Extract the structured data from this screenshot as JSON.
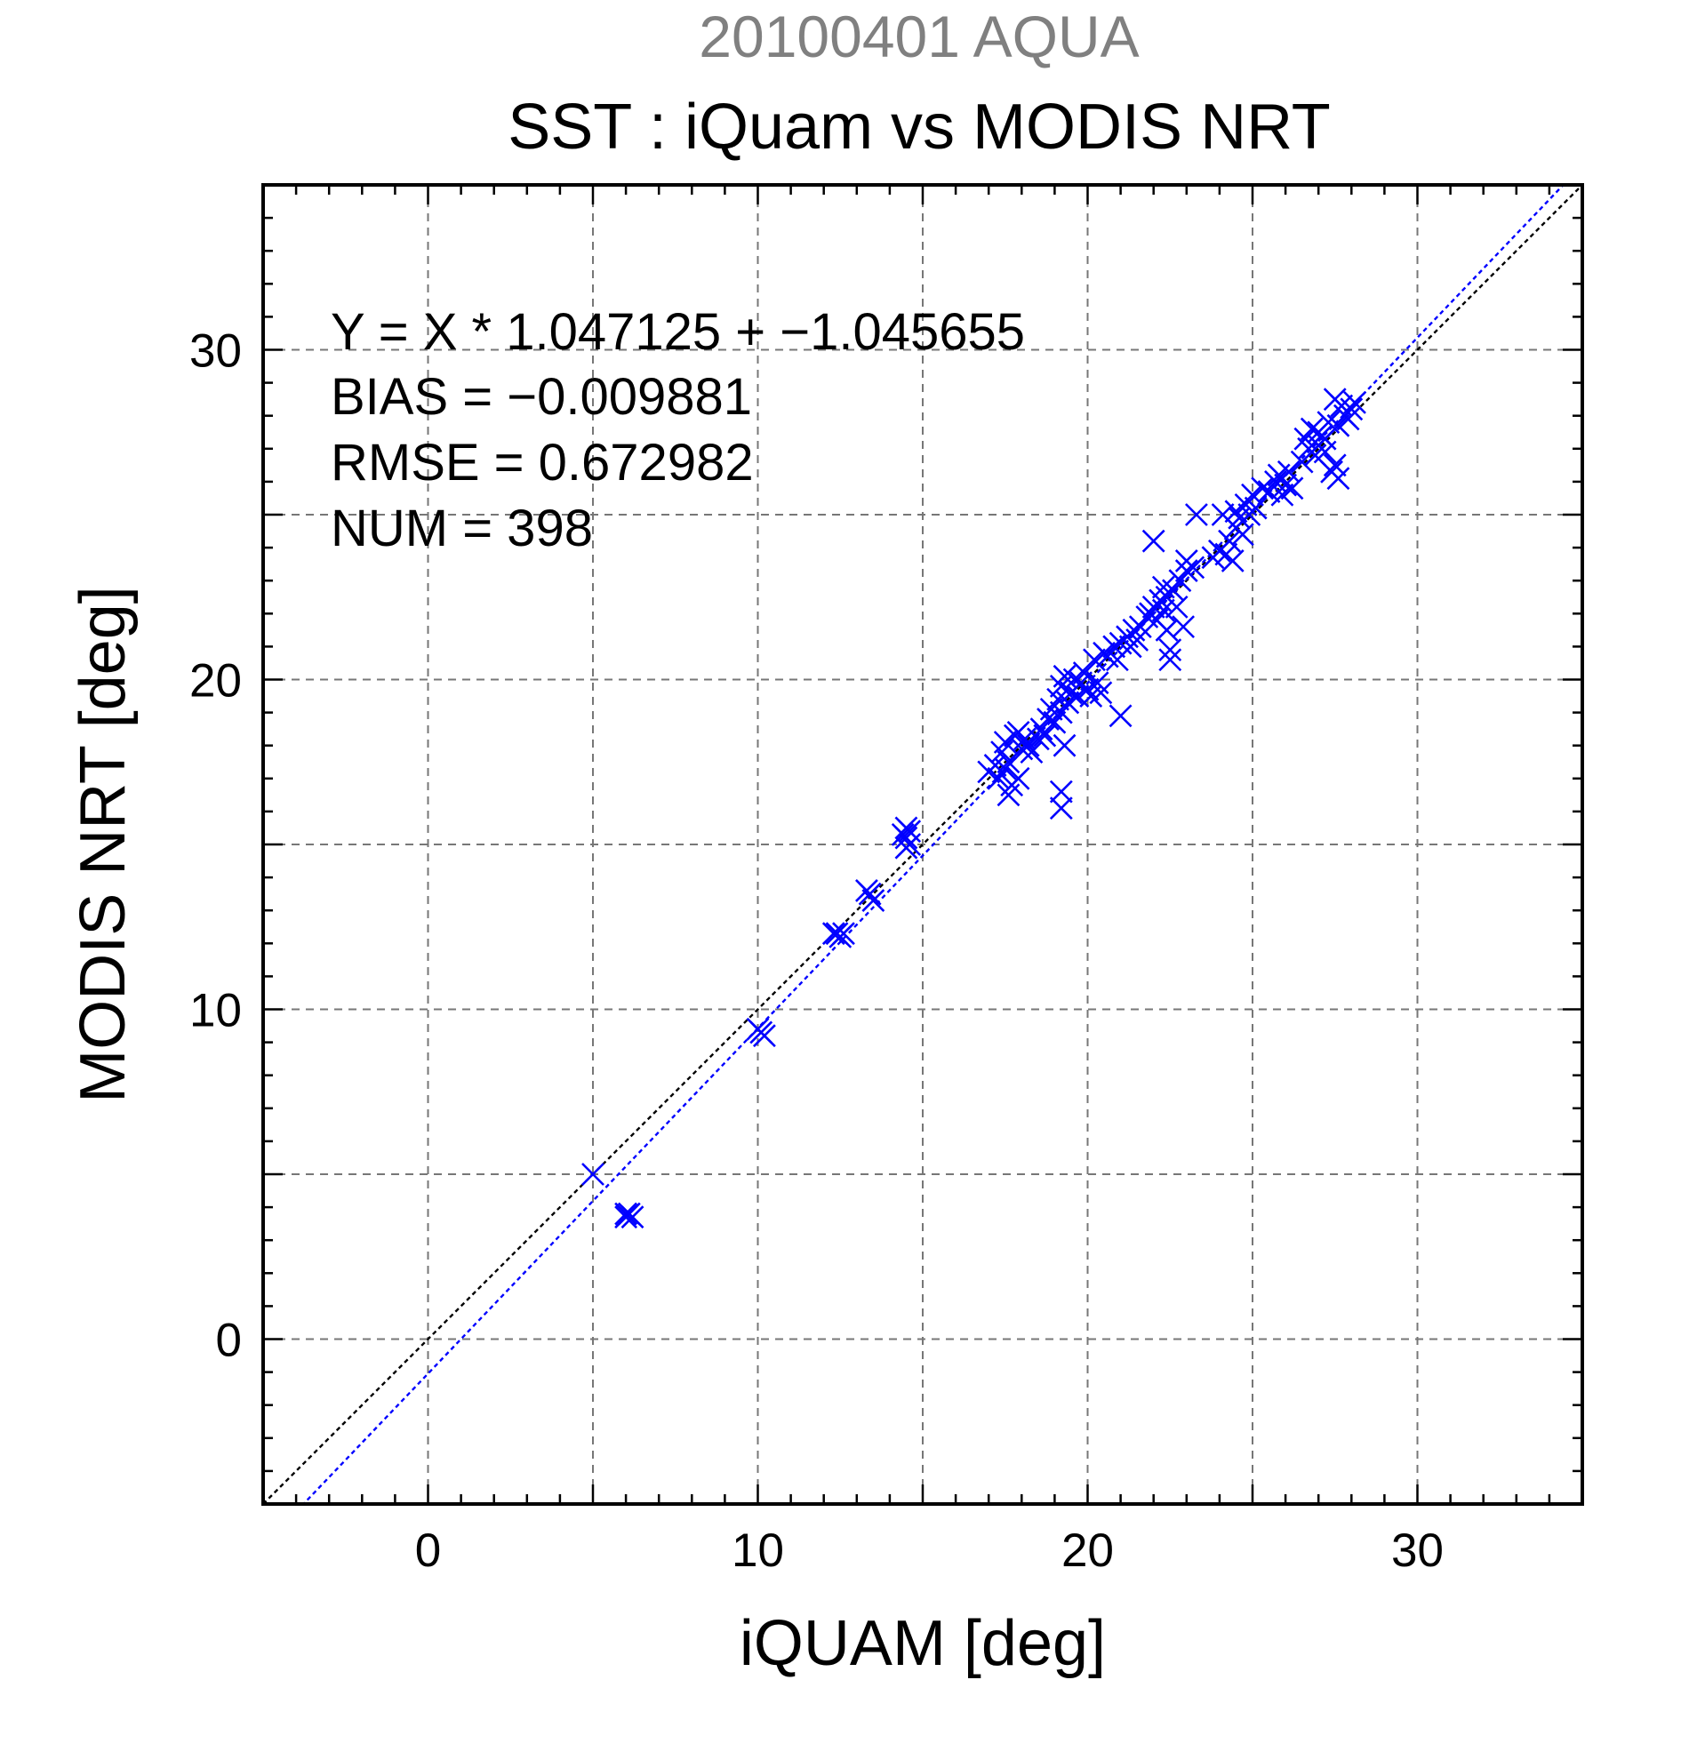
{
  "chart_data": {
    "type": "scatter",
    "title": "20100401 AQUA",
    "subtitle": "SST : iQuam vs MODIS NRT",
    "xlabel": "iQUAM [deg]",
    "ylabel": "MODIS NRT [deg]",
    "xlim": [
      -5,
      35
    ],
    "ylim": [
      -5,
      35
    ],
    "xticks": [
      0,
      10,
      20,
      30
    ],
    "yticks": [
      0,
      10,
      20,
      30
    ],
    "grid": true,
    "marker": "x",
    "colors": {
      "points": "#0000ff",
      "fit_line": "#0000ff",
      "one_to_one_line": "#000000"
    },
    "annotations": [
      "Y = X * 1.047125 + −1.045655",
      "BIAS = −0.009881",
      "RMSE = 0.672982",
      "NUM = 398"
    ],
    "fit": {
      "slope": 1.047125,
      "intercept": -1.045655
    },
    "one_to_one": {
      "slope": 1,
      "intercept": 0
    },
    "points": [
      [
        5.0,
        5.0
      ],
      [
        6.0,
        3.7
      ],
      [
        6.1,
        3.8
      ],
      [
        6.2,
        3.7
      ],
      [
        6.0,
        3.8
      ],
      [
        10.1,
        9.3
      ],
      [
        10.2,
        9.2
      ],
      [
        10.0,
        9.4
      ],
      [
        12.4,
        12.3
      ],
      [
        12.5,
        12.2
      ],
      [
        12.3,
        12.3
      ],
      [
        12.6,
        12.3
      ],
      [
        13.4,
        13.5
      ],
      [
        13.5,
        13.3
      ],
      [
        13.3,
        13.6
      ],
      [
        14.5,
        15.5
      ],
      [
        14.5,
        15.2
      ],
      [
        14.6,
        15.0
      ],
      [
        14.5,
        14.9
      ],
      [
        14.4,
        15.3
      ],
      [
        14.6,
        15.4
      ],
      [
        17.0,
        17.2
      ],
      [
        17.2,
        17.4
      ],
      [
        17.3,
        17.0
      ],
      [
        17.4,
        17.8
      ],
      [
        17.5,
        18.1
      ],
      [
        17.6,
        17.5
      ],
      [
        17.7,
        16.8
      ],
      [
        17.6,
        16.5
      ],
      [
        17.8,
        18.3
      ],
      [
        17.9,
        18.4
      ],
      [
        18.0,
        17.9
      ],
      [
        18.1,
        18.2
      ],
      [
        17.5,
        17.3
      ],
      [
        17.9,
        17.0
      ],
      [
        18.2,
        18.0
      ],
      [
        18.3,
        17.8
      ],
      [
        18.5,
        18.2
      ],
      [
        18.6,
        18.5
      ],
      [
        18.7,
        18.3
      ],
      [
        18.8,
        18.8
      ],
      [
        18.9,
        19.1
      ],
      [
        19.0,
        18.7
      ],
      [
        19.1,
        19.4
      ],
      [
        19.2,
        19.0
      ],
      [
        19.2,
        19.8
      ],
      [
        19.3,
        20.1
      ],
      [
        19.3,
        18.0
      ],
      [
        19.2,
        16.1
      ],
      [
        19.2,
        16.6
      ],
      [
        19.4,
        19.3
      ],
      [
        19.5,
        19.6
      ],
      [
        19.6,
        20.0
      ],
      [
        19.7,
        19.5
      ],
      [
        19.8,
        19.9
      ],
      [
        19.9,
        20.2
      ],
      [
        20.0,
        19.7
      ],
      [
        20.1,
        19.5
      ],
      [
        20.2,
        20.6
      ],
      [
        20.3,
        19.9
      ],
      [
        20.4,
        19.6
      ],
      [
        20.5,
        20.8
      ],
      [
        20.6,
        20.7
      ],
      [
        20.8,
        21.0
      ],
      [
        20.9,
        20.6
      ],
      [
        21.0,
        18.9
      ],
      [
        21.0,
        21.1
      ],
      [
        21.2,
        21.3
      ],
      [
        21.3,
        21.0
      ],
      [
        21.4,
        21.5
      ],
      [
        21.5,
        21.2
      ],
      [
        21.6,
        21.6
      ],
      [
        21.8,
        21.9
      ],
      [
        21.9,
        22.0
      ],
      [
        22.0,
        22.2
      ],
      [
        22.0,
        24.2
      ],
      [
        22.1,
        21.8
      ],
      [
        22.2,
        22.4
      ],
      [
        22.3,
        22.1
      ],
      [
        22.3,
        22.8
      ],
      [
        22.4,
        22.5
      ],
      [
        22.5,
        20.6
      ],
      [
        22.5,
        20.9
      ],
      [
        22.4,
        21.5
      ],
      [
        22.6,
        22.7
      ],
      [
        22.7,
        22.2
      ],
      [
        22.8,
        23.0
      ],
      [
        22.9,
        21.6
      ],
      [
        23.0,
        23.3
      ],
      [
        23.0,
        23.6
      ],
      [
        23.2,
        23.4
      ],
      [
        23.3,
        25.0
      ],
      [
        23.8,
        23.7
      ],
      [
        24.0,
        23.9
      ],
      [
        24.1,
        25.0
      ],
      [
        24.2,
        23.8
      ],
      [
        24.3,
        24.2
      ],
      [
        24.4,
        23.6
      ],
      [
        24.5,
        24.6
      ],
      [
        24.5,
        25.1
      ],
      [
        24.6,
        24.9
      ],
      [
        24.7,
        24.4
      ],
      [
        24.8,
        25.3
      ],
      [
        24.9,
        25.0
      ],
      [
        25.0,
        25.6
      ],
      [
        25.1,
        25.2
      ],
      [
        25.3,
        25.8
      ],
      [
        25.5,
        25.7
      ],
      [
        25.7,
        26.0
      ],
      [
        25.8,
        26.2
      ],
      [
        25.9,
        25.6
      ],
      [
        26.0,
        25.9
      ],
      [
        26.1,
        26.3
      ],
      [
        26.2,
        25.8
      ],
      [
        26.5,
        26.6
      ],
      [
        26.6,
        27.3
      ],
      [
        26.7,
        27.0
      ],
      [
        26.8,
        27.6
      ],
      [
        26.9,
        26.8
      ],
      [
        27.0,
        27.5
      ],
      [
        27.0,
        27.1
      ],
      [
        27.1,
        27.4
      ],
      [
        27.2,
        26.9
      ],
      [
        27.3,
        27.8
      ],
      [
        27.4,
        26.3
      ],
      [
        27.5,
        26.5
      ],
      [
        27.6,
        26.1
      ],
      [
        27.6,
        27.7
      ],
      [
        27.7,
        28.3
      ],
      [
        27.8,
        28.0
      ],
      [
        27.9,
        27.9
      ],
      [
        28.0,
        28.2
      ],
      [
        28.1,
        28.4
      ],
      [
        27.5,
        28.5
      ],
      [
        27.2,
        27.3
      ]
    ]
  }
}
